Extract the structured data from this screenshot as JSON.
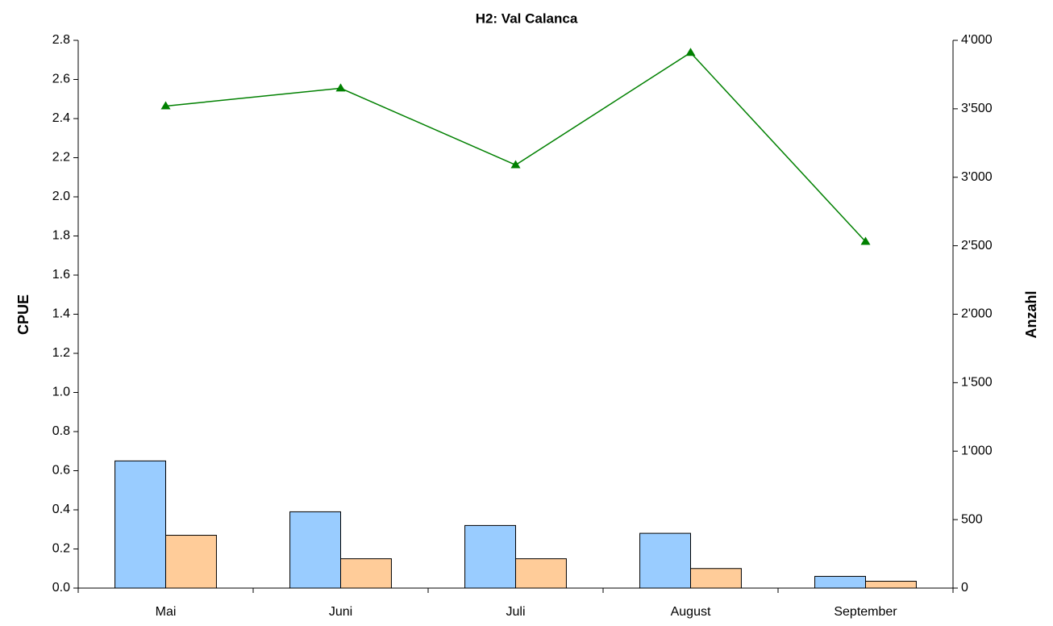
{
  "chart_data": {
    "type": "bar-line",
    "title": "H2: Val Calanca",
    "y_label": "CPUE",
    "y2_label": "Anzahl",
    "categories": [
      "Mai",
      "Juni",
      "Juli",
      "August",
      "September"
    ],
    "series": [
      {
        "type": "bar",
        "color": "#99ccff",
        "values": [
          0.65,
          0.39,
          0.32,
          0.28,
          0.06
        ]
      },
      {
        "type": "bar",
        "color": "#ffcc99",
        "values": [
          0.27,
          0.15,
          0.15,
          0.1,
          0.035
        ]
      },
      {
        "type": "line",
        "axis": "y2",
        "color": "#008000",
        "values": [
          3520,
          3650,
          3090,
          3910,
          2530
        ]
      }
    ],
    "ylim": [
      0,
      2.8
    ],
    "yticks": [
      {
        "value": 0,
        "label": "0.0"
      },
      0.2,
      0.4,
      0.6,
      0.8,
      {
        "value": 1,
        "label": "1.0"
      },
      1.2,
      1.4,
      1.6,
      1.8,
      {
        "value": 2,
        "label": "2.0"
      },
      2.2,
      2.4,
      2.6,
      2.8
    ],
    "y2lim": [
      0,
      4000
    ],
    "y2ticks": [
      0,
      500,
      {
        "value": 1000,
        "label": "1'000"
      },
      {
        "value": 1500,
        "label": "1'500"
      },
      {
        "value": 2000,
        "label": "2'000"
      },
      {
        "value": 2500,
        "label": "2'500"
      },
      {
        "value": 3000,
        "label": "3'000"
      },
      {
        "value": 3500,
        "label": "3'500"
      },
      {
        "value": 4000,
        "label": "4'000"
      }
    ],
    "grid": false
  }
}
